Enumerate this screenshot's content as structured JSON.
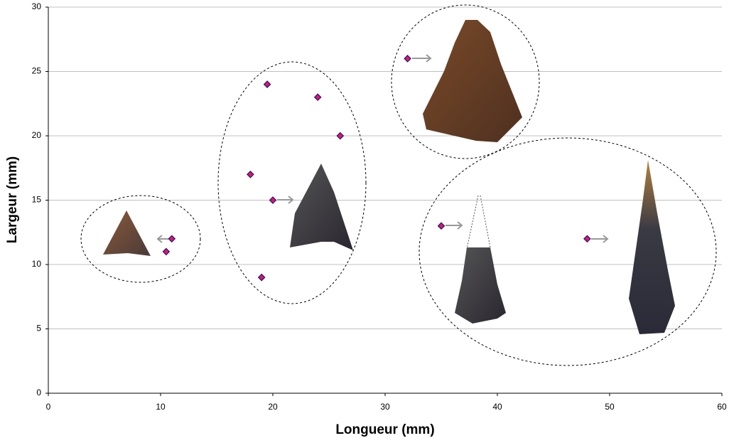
{
  "chart_data": {
    "type": "scatter",
    "x_label": "Longueur (mm)",
    "y_label": "Largeur (mm)",
    "x": [
      11,
      10.5,
      19.5,
      24,
      26,
      18,
      20,
      19,
      32,
      35,
      48
    ],
    "values": [
      12,
      11,
      24,
      23,
      20,
      17,
      15,
      9,
      26,
      13,
      12
    ],
    "color": "#e8106a",
    "edgecolor": "#1a1a7a",
    "xlim": [
      0,
      60
    ],
    "xticks": [
      0,
      10,
      20,
      30,
      40,
      50,
      60
    ],
    "ylim": [
      0,
      30
    ],
    "yticks": [
      0,
      5,
      10,
      15,
      20,
      25,
      30
    ],
    "grid": true
  }
}
